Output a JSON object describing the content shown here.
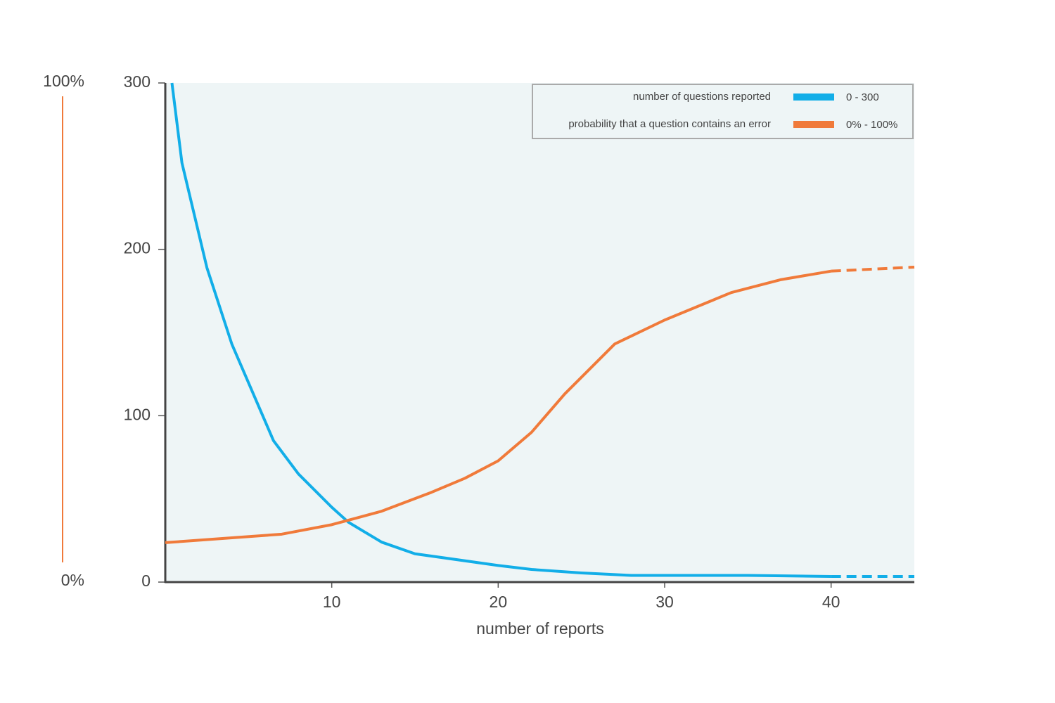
{
  "chart_data": {
    "type": "line",
    "x_label": "number of reports",
    "xlim": [
      0,
      45
    ],
    "xticks": [
      10,
      20,
      30,
      40
    ],
    "ylim": [
      0,
      300
    ],
    "yticks": [
      0,
      100,
      200,
      300
    ],
    "y2lim": [
      0,
      100
    ],
    "y2ticks": [
      {
        "value": 0,
        "label": "0%"
      },
      {
        "value": 100,
        "label": "100%"
      }
    ],
    "y2_color": "#f07a3a",
    "legend": "top-right",
    "series": [
      {
        "name": "number of questions reported",
        "range": "0 - 300",
        "color": "#12aee8",
        "dashed_from_x": 40,
        "x": [
          0.4,
          1,
          2.5,
          4,
          6.5,
          8,
          10,
          11,
          13,
          15,
          20,
          22,
          25,
          28,
          35,
          40,
          45
        ],
        "values": [
          300,
          252,
          189,
          143,
          85,
          65,
          45,
          36,
          24,
          17,
          10,
          7.6,
          5.5,
          4,
          4,
          3.4,
          3.4
        ]
      },
      {
        "name": "probability that a question contains an error",
        "range": "0% - 100%",
        "color": "#f07a3a",
        "axis": "y2",
        "dashed_from_x": 40,
        "x": [
          0,
          7,
          10,
          13,
          16,
          18,
          20,
          22,
          24,
          27,
          30,
          34,
          37,
          40,
          45
        ],
        "values": [
          7.9,
          9.6,
          11.5,
          14.2,
          18,
          20.8,
          24.3,
          30,
          37.7,
          47.7,
          52.5,
          58,
          60.6,
          62.3,
          63.1
        ]
      }
    ]
  }
}
